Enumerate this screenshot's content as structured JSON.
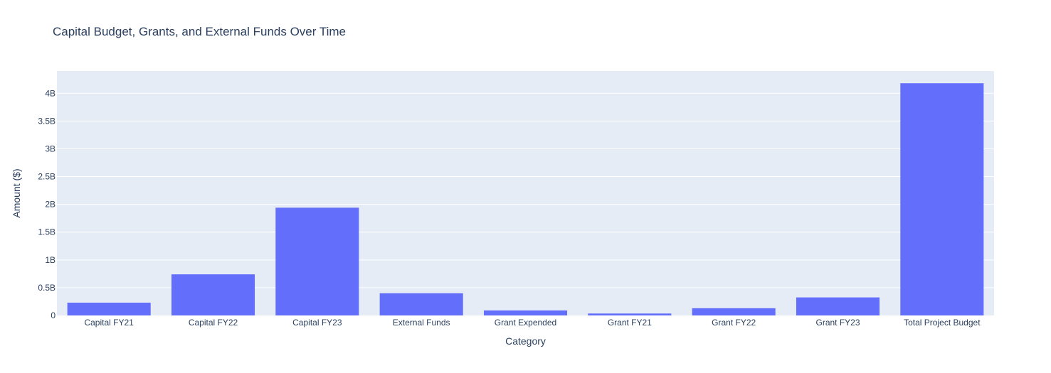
{
  "chart_data": {
    "type": "bar",
    "title": "Capital Budget, Grants, and External Funds Over Time",
    "xlabel": "Category",
    "ylabel": "Amount ($)",
    "categories": [
      "Capital FY21",
      "Capital FY22",
      "Capital FY23",
      "External Funds",
      "Grant Expended",
      "Grant FY21",
      "Grant FY22",
      "Grant FY23",
      "Total Project Budget"
    ],
    "values": [
      230000000,
      740000000,
      1940000000,
      400000000,
      90000000,
      35000000,
      130000000,
      325000000,
      4180000000
    ],
    "ylim": [
      0,
      4400000000
    ],
    "yticks": [
      {
        "value": 0,
        "label": "0"
      },
      {
        "value": 500000000,
        "label": "0.5B"
      },
      {
        "value": 1000000000,
        "label": "1B"
      },
      {
        "value": 1500000000,
        "label": "1.5B"
      },
      {
        "value": 2000000000,
        "label": "2B"
      },
      {
        "value": 2500000000,
        "label": "2.5B"
      },
      {
        "value": 3000000000,
        "label": "3B"
      },
      {
        "value": 3500000000,
        "label": "3.5B"
      },
      {
        "value": 4000000000,
        "label": "4B"
      }
    ],
    "grid": true,
    "legend": "none",
    "colors": {
      "bar": "#636efa",
      "plot_bg": "#e5ecf6",
      "grid": "#ffffff",
      "text": "#2a3f5f"
    }
  }
}
